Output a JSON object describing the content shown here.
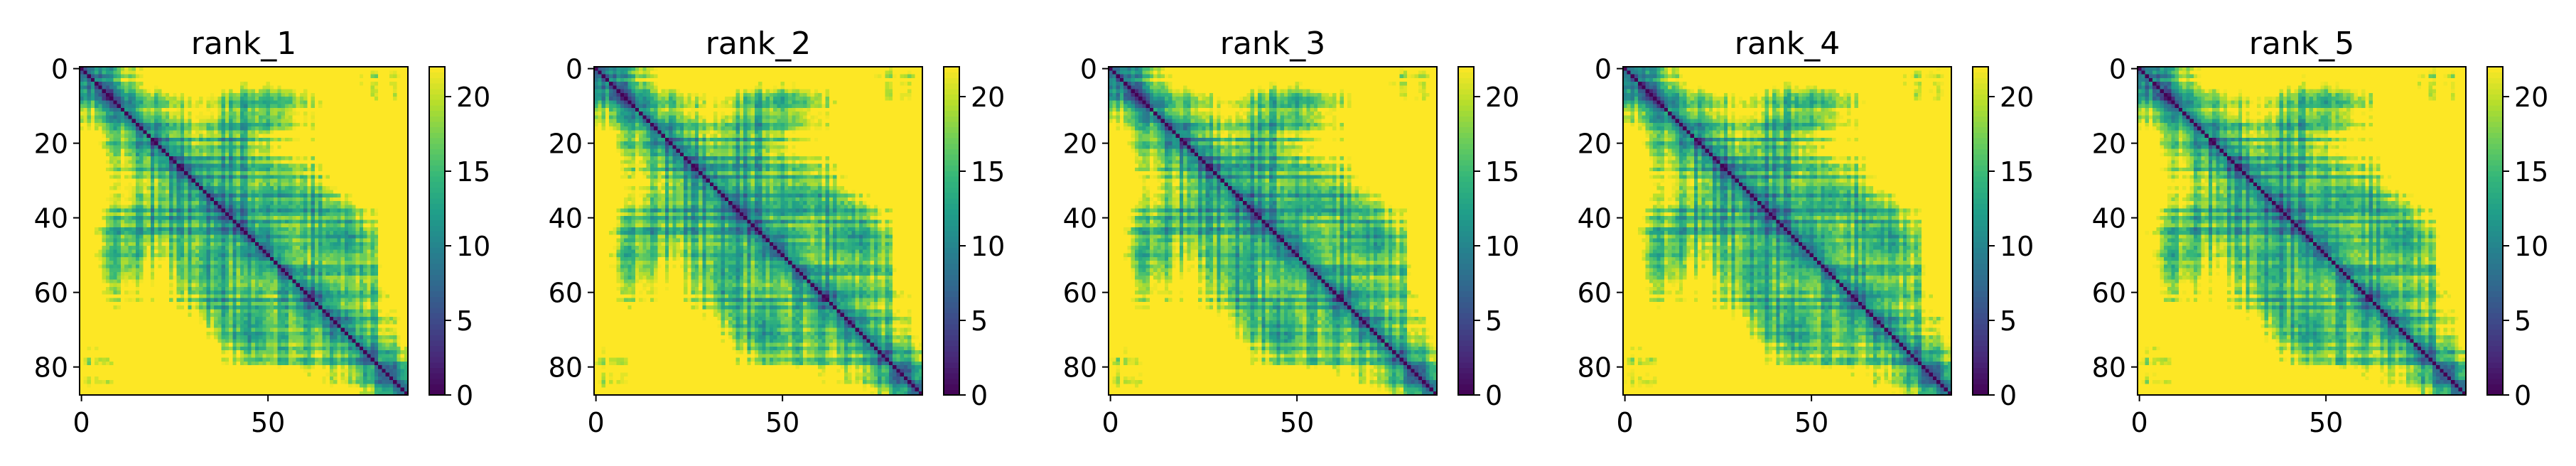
{
  "chart_data": {
    "type": "heatmap",
    "colormap": "viridis",
    "colormap_stops": [
      "#440154",
      "#482878",
      "#3e4989",
      "#31688e",
      "#26828e",
      "#1f9e89",
      "#35b779",
      "#6ece58",
      "#b5de2b",
      "#fde725"
    ],
    "matrix_size": 88,
    "x_ticks": [
      0,
      50
    ],
    "y_ticks": [
      0,
      20,
      40,
      60,
      80
    ],
    "colorbar": {
      "min": 0,
      "max": 22,
      "ticks": [
        0,
        5,
        10,
        15,
        20
      ]
    },
    "value_description": "pairwise residue distance map, symmetric, zero along the diagonal, saturating at about 22",
    "panels": [
      {
        "title": "rank_1",
        "variant": 1
      },
      {
        "title": "rank_2",
        "variant": 2
      },
      {
        "title": "rank_3",
        "variant": 3
      },
      {
        "title": "rank_4",
        "variant": 4
      },
      {
        "title": "rank_5",
        "variant": 5
      }
    ]
  }
}
